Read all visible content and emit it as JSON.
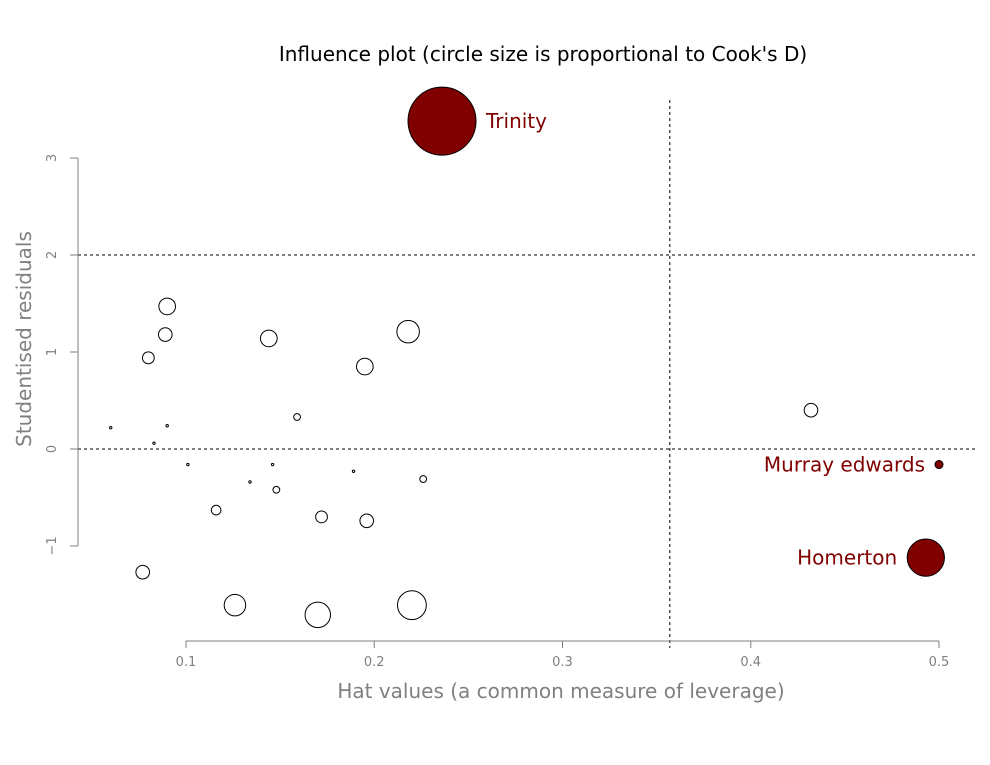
{
  "chart_data": {
    "type": "scatter",
    "title": "Influence plot (circle size is proportional to Cook's D)",
    "xlabel": "Hat values (a common measure of leverage)",
    "ylabel": "Studentised residuals",
    "xlim": [
      0.05,
      0.52
    ],
    "ylim": [
      -2.0,
      3.6
    ],
    "xticks": [
      0.1,
      0.2,
      0.3,
      0.4,
      0.5
    ],
    "xtick_labels": [
      "0.1",
      "0.2",
      "0.3",
      "0.4",
      "0.5"
    ],
    "yticks": [
      -1,
      0,
      1,
      2,
      3
    ],
    "ytick_labels": [
      "−1",
      "0",
      "1",
      "2",
      "3"
    ],
    "reference_lines": {
      "horizontal": [
        0,
        2
      ],
      "vertical": [
        0.357
      ]
    },
    "grid": false,
    "colors": {
      "highlight": "#800000",
      "normal_fill": "#ffffff",
      "outline": "#000000",
      "axis": "#808080"
    },
    "points": [
      {
        "x": 0.236,
        "y": 3.38,
        "cooks_d": 1.0,
        "label": "Trinity",
        "highlight": true
      },
      {
        "x": 0.5,
        "y": -0.16,
        "cooks_d": 0.0,
        "label": "Murray edwards",
        "highlight": true
      },
      {
        "x": 0.493,
        "y": -1.12,
        "cooks_d": 0.3,
        "label": "Homerton",
        "highlight": true
      },
      {
        "x": 0.432,
        "y": 0.4,
        "cooks_d": 0.04,
        "label": ""
      },
      {
        "x": 0.09,
        "y": 1.47,
        "cooks_d": 0.06,
        "label": ""
      },
      {
        "x": 0.089,
        "y": 1.18,
        "cooks_d": 0.04,
        "label": ""
      },
      {
        "x": 0.08,
        "y": 0.94,
        "cooks_d": 0.03,
        "label": ""
      },
      {
        "x": 0.144,
        "y": 1.14,
        "cooks_d": 0.06,
        "label": ""
      },
      {
        "x": 0.218,
        "y": 1.21,
        "cooks_d": 0.11,
        "label": ""
      },
      {
        "x": 0.195,
        "y": 0.85,
        "cooks_d": 0.06,
        "label": ""
      },
      {
        "x": 0.159,
        "y": 0.33,
        "cooks_d": 0.01,
        "label": ""
      },
      {
        "x": 0.06,
        "y": 0.22,
        "cooks_d": 0.0,
        "label": ""
      },
      {
        "x": 0.09,
        "y": 0.24,
        "cooks_d": 0.0,
        "label": ""
      },
      {
        "x": 0.083,
        "y": 0.06,
        "cooks_d": 0.0,
        "label": ""
      },
      {
        "x": 0.101,
        "y": -0.16,
        "cooks_d": 0.0,
        "label": ""
      },
      {
        "x": 0.146,
        "y": -0.16,
        "cooks_d": 0.0,
        "label": ""
      },
      {
        "x": 0.189,
        "y": -0.23,
        "cooks_d": 0.0,
        "label": ""
      },
      {
        "x": 0.226,
        "y": -0.31,
        "cooks_d": 0.01,
        "label": ""
      },
      {
        "x": 0.134,
        "y": -0.34,
        "cooks_d": 0.0,
        "label": ""
      },
      {
        "x": 0.148,
        "y": -0.42,
        "cooks_d": 0.01,
        "label": ""
      },
      {
        "x": 0.116,
        "y": -0.63,
        "cooks_d": 0.02,
        "label": ""
      },
      {
        "x": 0.172,
        "y": -0.7,
        "cooks_d": 0.03,
        "label": ""
      },
      {
        "x": 0.196,
        "y": -0.74,
        "cooks_d": 0.04,
        "label": ""
      },
      {
        "x": 0.077,
        "y": -1.27,
        "cooks_d": 0.04,
        "label": ""
      },
      {
        "x": 0.126,
        "y": -1.61,
        "cooks_d": 0.1,
        "label": ""
      },
      {
        "x": 0.17,
        "y": -1.71,
        "cooks_d": 0.14,
        "label": ""
      },
      {
        "x": 0.22,
        "y": -1.61,
        "cooks_d": 0.18,
        "label": ""
      }
    ]
  }
}
